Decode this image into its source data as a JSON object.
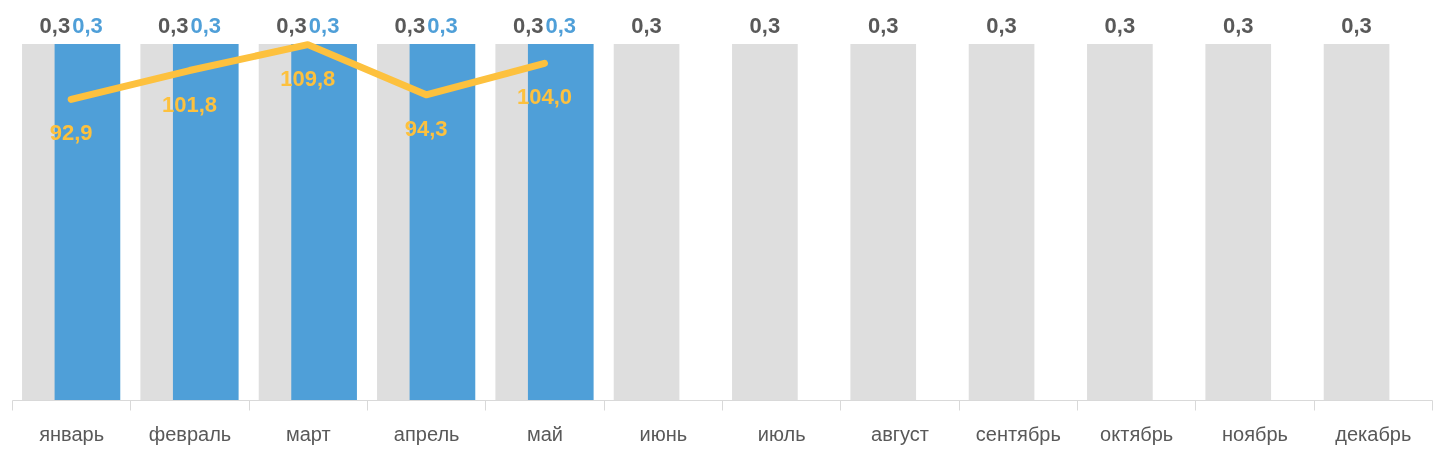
{
  "chart_data": {
    "type": "bar",
    "categories": [
      "январь",
      "февраль",
      "март",
      "апрель",
      "май",
      "июнь",
      "июль",
      "август",
      "сентябрь",
      "октябрь",
      "ноябрь",
      "декабрь"
    ],
    "series": [
      {
        "color": "#dedede",
        "values": [
          0.3,
          0.3,
          0.3,
          0.3,
          0.3,
          0.3,
          0.3,
          0.3,
          0.3,
          0.3,
          0.3,
          0.3
        ],
        "value_labels": [
          "0,3",
          "0,3",
          "0,3",
          "0,3",
          "0,3",
          "0,3",
          "0,3",
          "0,3",
          "0,3",
          "0,3",
          "0,3",
          "0,3"
        ]
      },
      {
        "color": "#4f9fd8",
        "values": [
          0.3,
          0.3,
          0.3,
          0.3,
          0.3,
          null,
          null,
          null,
          null,
          null,
          null,
          null
        ],
        "value_labels": [
          "0,3",
          "0,3",
          "0,3",
          "0,3",
          "0,3",
          null,
          null,
          null,
          null,
          null,
          null,
          null
        ]
      },
      {
        "type": "line",
        "axis": "y2",
        "color": "#fdc13e",
        "values": [
          92.9,
          101.8,
          109.8,
          94.3,
          104.0,
          null,
          null,
          null,
          null,
          null,
          null,
          null
        ],
        "value_labels": [
          "92,9",
          "101,8",
          "109,8",
          "94,3",
          "104,0",
          null,
          null,
          null,
          null,
          null,
          null,
          null
        ]
      }
    ],
    "grid": false,
    "tick_labels": "x",
    "line_style": "solid",
    "marker": "none"
  }
}
